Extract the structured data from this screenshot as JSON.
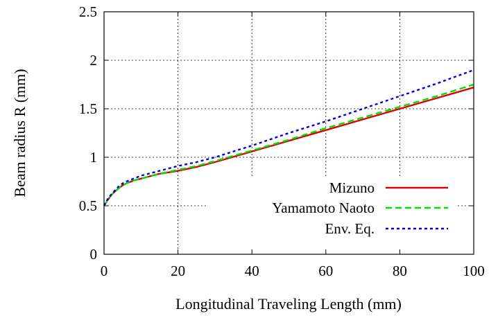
{
  "chart_data": {
    "type": "line",
    "xlabel": "Longitudinal Traveling Length (mm)",
    "ylabel": "Beam radius R (mm)",
    "xlim": [
      0,
      100
    ],
    "ylim": [
      0,
      2.5
    ],
    "x_ticks": [
      0,
      20,
      40,
      60,
      80,
      100
    ],
    "y_ticks": [
      0,
      0.5,
      1,
      1.5,
      2,
      2.5
    ],
    "x_tick_labels": [
      "0",
      "20",
      "40",
      "60",
      "80",
      "100"
    ],
    "y_tick_labels": [
      "0",
      "0.5",
      "1",
      "1.5",
      "2",
      "2.5"
    ],
    "grid": true,
    "legend_position": "bottom-right",
    "series": [
      {
        "name": "Mizuno",
        "color": "#e00000",
        "style": "solid",
        "x": [
          0,
          1,
          2,
          3,
          4,
          5,
          6,
          8,
          10,
          15,
          20,
          25,
          30,
          40,
          50,
          60,
          70,
          80,
          90,
          100
        ],
        "y": [
          0.5,
          0.56,
          0.61,
          0.65,
          0.68,
          0.71,
          0.73,
          0.76,
          0.78,
          0.83,
          0.86,
          0.9,
          0.95,
          1.06,
          1.17,
          1.28,
          1.39,
          1.5,
          1.61,
          1.72
        ]
      },
      {
        "name": "Yamamoto Naoto",
        "color": "#00e000",
        "style": "dashed",
        "x": [
          0,
          1,
          2,
          3,
          4,
          5,
          6,
          8,
          10,
          15,
          20,
          25,
          30,
          40,
          50,
          60,
          70,
          80,
          90,
          100
        ],
        "y": [
          0.5,
          0.56,
          0.61,
          0.65,
          0.68,
          0.71,
          0.73,
          0.76,
          0.78,
          0.83,
          0.87,
          0.91,
          0.96,
          1.07,
          1.18,
          1.3,
          1.41,
          1.52,
          1.63,
          1.75
        ]
      },
      {
        "name": "Env. Eq.",
        "color": "#0000e0",
        "style": "dotted",
        "x": [
          0,
          1,
          2,
          3,
          4,
          5,
          6,
          8,
          10,
          15,
          20,
          25,
          30,
          40,
          50,
          60,
          70,
          80,
          90,
          100
        ],
        "y": [
          0.5,
          0.57,
          0.62,
          0.66,
          0.7,
          0.73,
          0.75,
          0.78,
          0.81,
          0.86,
          0.91,
          0.95,
          1.0,
          1.12,
          1.25,
          1.37,
          1.5,
          1.63,
          1.76,
          1.9
        ]
      }
    ]
  }
}
